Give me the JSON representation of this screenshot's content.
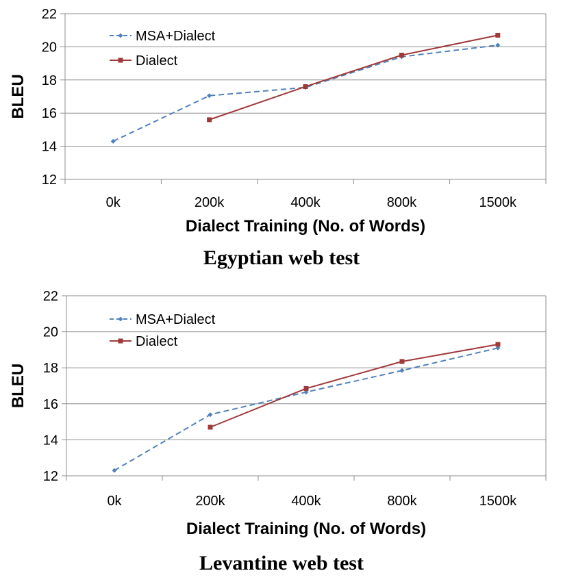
{
  "chart_data": [
    {
      "type": "line",
      "caption": "Egyptian web test",
      "categories": [
        "0k",
        "200k",
        "400k",
        "800k",
        "1500k"
      ],
      "series": [
        {
          "name": "MSA+Dialect",
          "values": [
            14.3,
            17.05,
            17.55,
            19.4,
            20.1
          ],
          "color": "#4F81BD",
          "style": "dashed",
          "marker": "diamond"
        },
        {
          "name": "Dialect",
          "values": [
            null,
            15.6,
            17.6,
            19.5,
            20.7
          ],
          "color": "#A0393A",
          "style": "solid",
          "marker": "square"
        }
      ],
      "xlabel": "Dialect Training (No. of Words)",
      "ylabel": "BLEU",
      "ylim": [
        12,
        22
      ],
      "yticks": [
        12,
        14,
        16,
        18,
        20,
        22
      ],
      "grid": "horizontal",
      "legend": "top-left"
    },
    {
      "type": "line",
      "caption": "Levantine web test",
      "categories": [
        "0k",
        "200k",
        "400k",
        "800k",
        "1500k"
      ],
      "series": [
        {
          "name": "MSA+Dialect",
          "values": [
            12.3,
            15.4,
            16.65,
            17.85,
            19.1
          ],
          "color": "#4F81BD",
          "style": "dashed",
          "marker": "diamond"
        },
        {
          "name": "Dialect",
          "values": [
            null,
            14.7,
            16.85,
            18.35,
            19.3
          ],
          "color": "#A0393A",
          "style": "solid",
          "marker": "square"
        }
      ],
      "xlabel": "Dialect Training (No. of Words)",
      "ylabel": "BLEU",
      "ylim": [
        12,
        22
      ],
      "yticks": [
        12,
        14,
        16,
        18,
        20,
        22
      ],
      "grid": "horizontal",
      "legend": "top-left"
    }
  ]
}
